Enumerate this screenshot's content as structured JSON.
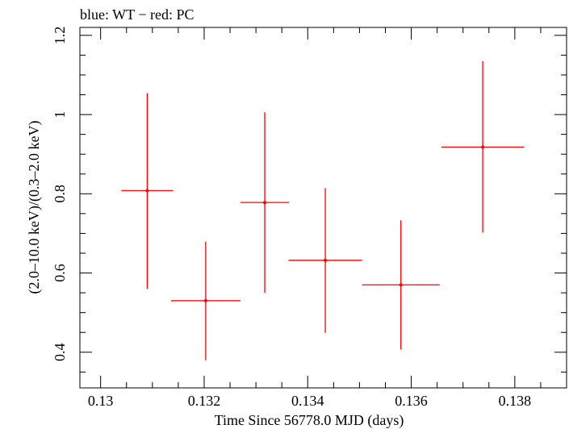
{
  "chart_data": {
    "type": "scatter",
    "title": "blue: WT − red: PC",
    "xlabel": "Time Since 56778.0 MJD (days)",
    "ylabel": "(2.0–10.0 keV)/(0.3–2.0 keV)",
    "xlim": [
      0.1296,
      0.139
    ],
    "ylim": [
      0.31,
      1.22
    ],
    "x_ticks": [
      0.13,
      0.132,
      0.134,
      0.136,
      0.138
    ],
    "x_tick_labels": [
      "0.13",
      "0.132",
      "0.134",
      "0.136",
      "0.138"
    ],
    "y_ticks": [
      0.4,
      0.6,
      0.8,
      1.0,
      1.2
    ],
    "y_tick_labels": [
      "0.4",
      "0.6",
      "0.8",
      "1",
      "1.2"
    ],
    "grid": false,
    "series": [
      {
        "name": "PC",
        "color": "#ff0000",
        "points": [
          {
            "x": 0.1309,
            "xerr": 0.0005,
            "y": 0.808,
            "yerr_low": 0.248,
            "yerr_high": 0.246
          },
          {
            "x": 0.13203,
            "xerr": 0.00067,
            "y": 0.53,
            "yerr_low": 0.15,
            "yerr_high": 0.149
          },
          {
            "x": 0.13317,
            "xerr": 0.00047,
            "y": 0.778,
            "yerr_low": 0.228,
            "yerr_high": 0.228
          },
          {
            "x": 0.13434,
            "xerr": 0.00071,
            "y": 0.632,
            "yerr_low": 0.183,
            "yerr_high": 0.182
          },
          {
            "x": 0.1358,
            "xerr": 0.00075,
            "y": 0.57,
            "yerr_low": 0.163,
            "yerr_high": 0.163
          },
          {
            "x": 0.13738,
            "xerr": 0.0008,
            "y": 0.918,
            "yerr_low": 0.216,
            "yerr_high": 0.217
          }
        ]
      }
    ]
  }
}
